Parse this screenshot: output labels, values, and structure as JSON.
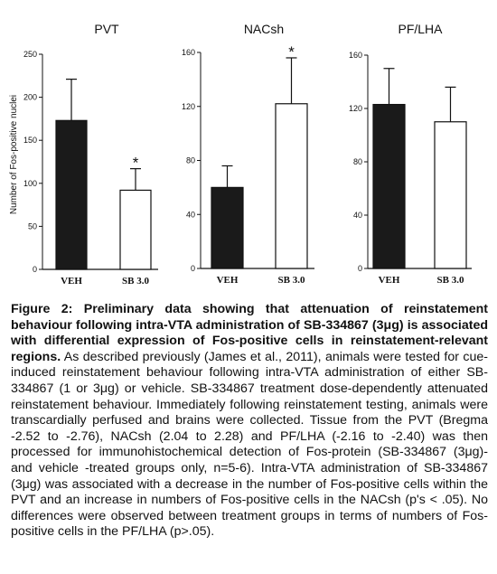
{
  "chart_data": [
    {
      "type": "bar",
      "title": "PVT",
      "ylabel": "Number of Fos-positive nuclei",
      "xlabel": "",
      "categories": [
        "VEH",
        "SB 3.0"
      ],
      "values": [
        173,
        92
      ],
      "error": [
        48,
        25
      ],
      "ylim": [
        0,
        250
      ],
      "yticks": [
        "0",
        "50",
        "100",
        "150",
        "200",
        "250"
      ],
      "significance": [
        "",
        "*"
      ],
      "bar_colors": [
        "#1a1a1a",
        "#ffffff"
      ]
    },
    {
      "type": "bar",
      "title": "NACsh",
      "ylabel": "",
      "xlabel": "",
      "categories": [
        "VEH",
        "SB 3.0"
      ],
      "values": [
        60,
        122
      ],
      "error": [
        16,
        34
      ],
      "ylim": [
        0,
        160
      ],
      "yticks": [
        "0",
        "40",
        "80",
        "120",
        "160"
      ],
      "significance": [
        "",
        "*"
      ],
      "bar_colors": [
        "#1a1a1a",
        "#ffffff"
      ]
    },
    {
      "type": "bar",
      "title": "PF/LHA",
      "ylabel": "",
      "xlabel": "",
      "categories": [
        "VEH",
        "SB 3.0"
      ],
      "values": [
        123,
        110
      ],
      "error": [
        27,
        26
      ],
      "ylim": [
        0,
        160
      ],
      "yticks": [
        "0",
        "40",
        "80",
        "120",
        "160"
      ],
      "significance": [
        "",
        ""
      ],
      "bar_colors": [
        "#1a1a1a",
        "#ffffff"
      ]
    }
  ],
  "caption": {
    "label_bold": "Figure 2: Preliminary data showing that attenuation of reinstatement behaviour following intra-VTA administration of SB-334867 (3μg) is associated with differential expression of Fos-positive cells in reinstatement-relevant regions.",
    "body": " As described previously (James et al., 2011), animals were tested for cue-induced reinstatement behaviour following intra-VTA administration of either SB-334867 (1 or 3μg) or vehicle. SB-334867 treatment dose-dependently attenuated reinstatement behaviour. Immediately following reinstatement testing, animals were transcardially perfused and brains were collected. Tissue from the PVT (Bregma -2.52 to -2.76), NACsh (2.04 to 2.28) and PF/LHA (-2.16 to -2.40) was then processed for immunohistochemical detection of Fos-protein (SB-334867 (3μg)- and vehicle -treated groups only, n=5-6). Intra-VTA administration of SB-334867 (3μg) was associated with a decrease in the number of Fos-positive cells within the PVT and an increase in numbers of Fos-positive cells in the NACsh (p's < .05). No differences were observed between treatment groups in terms of numbers of Fos-positive cells in the PF/LHA (p>.05)."
  }
}
